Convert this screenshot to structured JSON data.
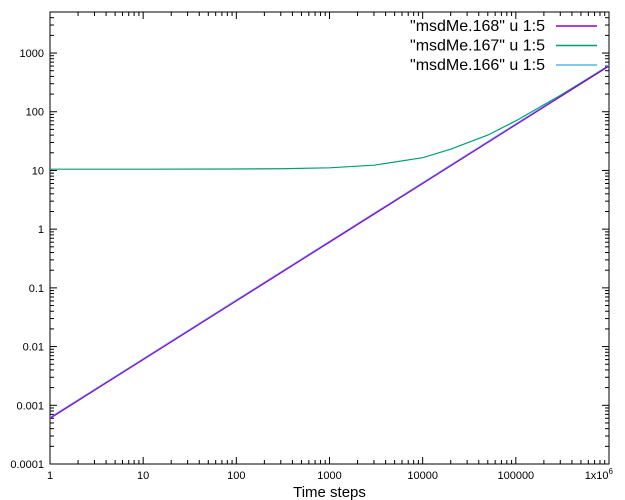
{
  "chart_data": {
    "type": "line",
    "xlabel": "Time steps",
    "ylabel": "",
    "x_scale": "log",
    "y_scale": "log",
    "xlim": [
      1,
      1000000
    ],
    "ylim": [
      0.0001,
      5000
    ],
    "grid": false,
    "legend_position": "top-right",
    "x_ticks": [
      {
        "value": 1,
        "label": "1"
      },
      {
        "value": 10,
        "label": "10"
      },
      {
        "value": 100,
        "label": "100"
      },
      {
        "value": 1000,
        "label": "1000"
      },
      {
        "value": 10000,
        "label": "10000"
      },
      {
        "value": 100000,
        "label": "100000"
      },
      {
        "value": 1000000,
        "label": "1x10",
        "sup": "6"
      }
    ],
    "y_ticks": [
      {
        "value": 0.0001,
        "label": "0.0001"
      },
      {
        "value": 0.001,
        "label": "0.001"
      },
      {
        "value": 0.01,
        "label": "0.01"
      },
      {
        "value": 0.1,
        "label": "0.1"
      },
      {
        "value": 1,
        "label": "1"
      },
      {
        "value": 10,
        "label": "10"
      },
      {
        "value": 100,
        "label": "100"
      },
      {
        "value": 1000,
        "label": "1000"
      }
    ],
    "series": [
      {
        "name": "\"msdMe.168\" u 1:5",
        "color": "#9400d3",
        "x": [
          1,
          10,
          100,
          1000,
          10000,
          100000,
          1000000
        ],
        "y": [
          0.0006,
          0.006,
          0.06,
          0.6,
          6,
          60,
          600
        ]
      },
      {
        "name": "\"msdMe.167\" u 1:5",
        "color": "#009e73",
        "x": [
          1,
          10,
          100,
          300,
          1000,
          3000,
          10000,
          20000,
          50000,
          100000,
          300000,
          1000000
        ],
        "y": [
          10.5,
          10.5,
          10.6,
          10.7,
          11.1,
          12.3,
          16.5,
          23,
          40,
          70,
          190,
          610
        ]
      },
      {
        "name": "\"msdMe.166\" u 1:5",
        "color": "#56b4e9",
        "x": [
          1,
          10,
          100,
          1000,
          10000,
          100000,
          1000000
        ],
        "y": [
          0.00062,
          0.0062,
          0.062,
          0.62,
          6.2,
          62,
          620
        ]
      }
    ]
  }
}
